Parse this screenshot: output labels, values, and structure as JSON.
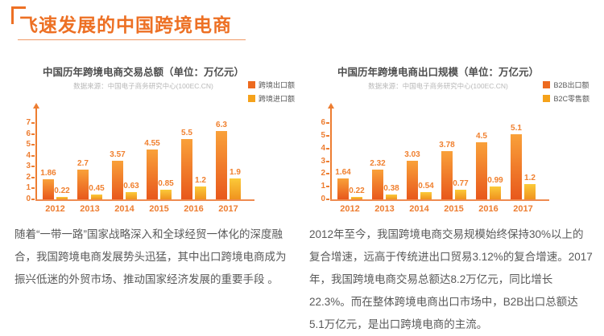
{
  "page": {
    "title": "飞速发展的中国跨境电商"
  },
  "colors": {
    "accent": "#ED7024",
    "axis": "#ED7D31",
    "value_label": "#F0802F",
    "series_primary_top": "#F9A13A",
    "series_primary_bottom": "#E8581C",
    "series_secondary_top": "#FBCA39",
    "series_secondary_bottom": "#F0931F",
    "legend_primary": "#ED6A1F",
    "legend_secondary": "#F5A21B"
  },
  "chart_data": [
    {
      "type": "bar",
      "title": "中国历年跨境电商交易总额（单位：万亿元）",
      "source": "数据来源：中国电子商务研究中心(100EC.CN)",
      "categories": [
        "2012",
        "2013",
        "2014",
        "2015",
        "2016",
        "2017"
      ],
      "series": [
        {
          "name": "跨境出口额",
          "values": [
            1.86,
            2.7,
            3.57,
            4.55,
            5.5,
            6.3
          ]
        },
        {
          "name": "跨境进口额",
          "values": [
            0.22,
            0.45,
            0.63,
            0.85,
            1.2,
            1.9
          ]
        }
      ],
      "ylim": [
        0,
        7
      ],
      "yticks": [
        0,
        1,
        2,
        3,
        4,
        5,
        6,
        7
      ],
      "grid": false,
      "legend_position": "top-right"
    },
    {
      "type": "bar",
      "title": "中国历年跨境电商出口规模（单位：万亿元）",
      "source": "数据来源：中国电子商务研究中心(100EC.CN)",
      "categories": [
        "2012",
        "2013",
        "2014",
        "2015",
        "2016",
        "2017"
      ],
      "series": [
        {
          "name": "B2B出口额",
          "values": [
            1.64,
            2.32,
            3.03,
            3.78,
            4.5,
            5.1
          ]
        },
        {
          "name": "B2C零售额",
          "values": [
            0.22,
            0.38,
            0.54,
            0.77,
            0.99,
            1.2
          ]
        }
      ],
      "ylim": [
        0,
        6
      ],
      "yticks": [
        0,
        1,
        2,
        3,
        4,
        5,
        6
      ],
      "grid": false,
      "legend_position": "top-right"
    }
  ],
  "paragraphs": [
    "随着“一带一路”国家战略深入和全球经贸一体化的深度融合，我国跨境电商发展势头迅猛，其中出口跨境电商成为振兴低迷的外贸市场、推动国家经济发展的重要手段 。",
    "2012年至今，我国跨境电商交易规模始终保持30%以上的复合增速，远高于传统进出口贸易3.12%的复合增速。2017年，我国跨境电商交易总额达8.2万亿元，同比增长22.3%。而在整体跨境电商出口市场中，B2B出口总额达5.1万亿元，是出口跨境电商的主流。"
  ]
}
